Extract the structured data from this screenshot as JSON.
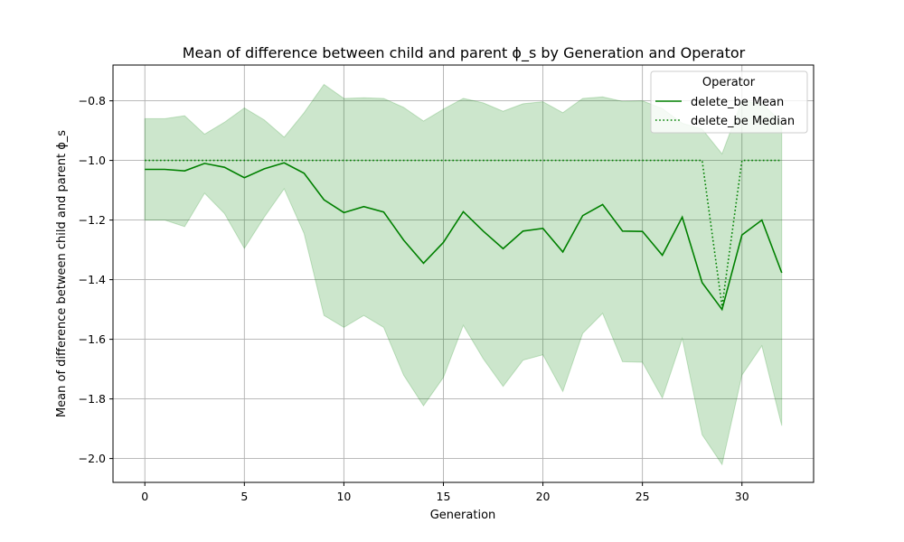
{
  "colors": {
    "line": "#008000",
    "band": "#008000",
    "grid": "#b0b0b0"
  },
  "chart_data": {
    "type": "line",
    "title": "Mean of difference between child and parent ϕ_s by Generation and Operator",
    "xlabel": "Generation",
    "ylabel": "Mean of difference between child and parent ϕ_s",
    "xlim": [
      -1.6,
      33.6
    ],
    "ylim": [
      -2.08,
      -0.68
    ],
    "grid": true,
    "legend": {
      "title": "Operator",
      "placement": "top-right"
    },
    "x_ticks": [
      0,
      5,
      10,
      15,
      20,
      25,
      30
    ],
    "x_tick_labels": [
      "0",
      "5",
      "10",
      "15",
      "20",
      "25",
      "30"
    ],
    "y_ticks": [
      -2.0,
      -1.8,
      -1.6,
      -1.4,
      -1.2,
      -1.0,
      -0.8
    ],
    "y_tick_labels": [
      "−2.0",
      "−1.8",
      "−1.6",
      "−1.4",
      "−1.2",
      "−1.0",
      "−0.8"
    ],
    "x": [
      0,
      1,
      2,
      3,
      4,
      5,
      6,
      7,
      8,
      9,
      10,
      11,
      12,
      13,
      14,
      15,
      16,
      17,
      18,
      19,
      20,
      21,
      22,
      23,
      24,
      25,
      26,
      27,
      28,
      29,
      30,
      31,
      32
    ],
    "series": [
      {
        "name": "delete_be Mean",
        "style": "solid",
        "values": [
          -1.03,
          -1.03,
          -1.035,
          -1.01,
          -1.023,
          -1.058,
          -1.028,
          -1.008,
          -1.043,
          -1.132,
          -1.175,
          -1.155,
          -1.173,
          -1.267,
          -1.345,
          -1.275,
          -1.172,
          -1.237,
          -1.296,
          -1.237,
          -1.228,
          -1.307,
          -1.185,
          -1.148,
          -1.237,
          -1.238,
          -1.318,
          -1.19,
          -1.41,
          -1.5,
          -1.25,
          -1.2,
          -1.377
        ]
      },
      {
        "name": "delete_be Median",
        "style": "dotted",
        "values": [
          -1.0,
          -1.0,
          -1.0,
          -1.0,
          -1.0,
          -1.0,
          -1.0,
          -1.0,
          -1.0,
          -1.0,
          -1.0,
          -1.0,
          -1.0,
          -1.0,
          -1.0,
          -1.0,
          -1.0,
          -1.0,
          -1.0,
          -1.0,
          -1.0,
          -1.0,
          -1.0,
          -1.0,
          -1.0,
          -1.0,
          -1.0,
          -1.0,
          -1.0,
          -1.49,
          -1.0,
          -1.0,
          -1.0
        ]
      }
    ],
    "band": {
      "upper": [
        -0.86,
        -0.86,
        -0.85,
        -0.912,
        -0.872,
        -0.824,
        -0.864,
        -0.922,
        -0.84,
        -0.745,
        -0.792,
        -0.79,
        -0.792,
        -0.822,
        -0.868,
        -0.828,
        -0.792,
        -0.807,
        -0.835,
        -0.81,
        -0.803,
        -0.84,
        -0.792,
        -0.787,
        -0.802,
        -0.8,
        -0.826,
        -0.875,
        -0.895,
        -0.978,
        -0.8,
        -0.81,
        -0.87
      ],
      "lower": [
        -1.2,
        -1.2,
        -1.222,
        -1.11,
        -1.178,
        -1.295,
        -1.19,
        -1.095,
        -1.245,
        -1.52,
        -1.56,
        -1.52,
        -1.56,
        -1.72,
        -1.823,
        -1.728,
        -1.553,
        -1.665,
        -1.758,
        -1.67,
        -1.652,
        -1.775,
        -1.58,
        -1.513,
        -1.675,
        -1.677,
        -1.797,
        -1.597,
        -1.92,
        -2.02,
        -1.72,
        -1.622,
        -1.89
      ]
    }
  }
}
